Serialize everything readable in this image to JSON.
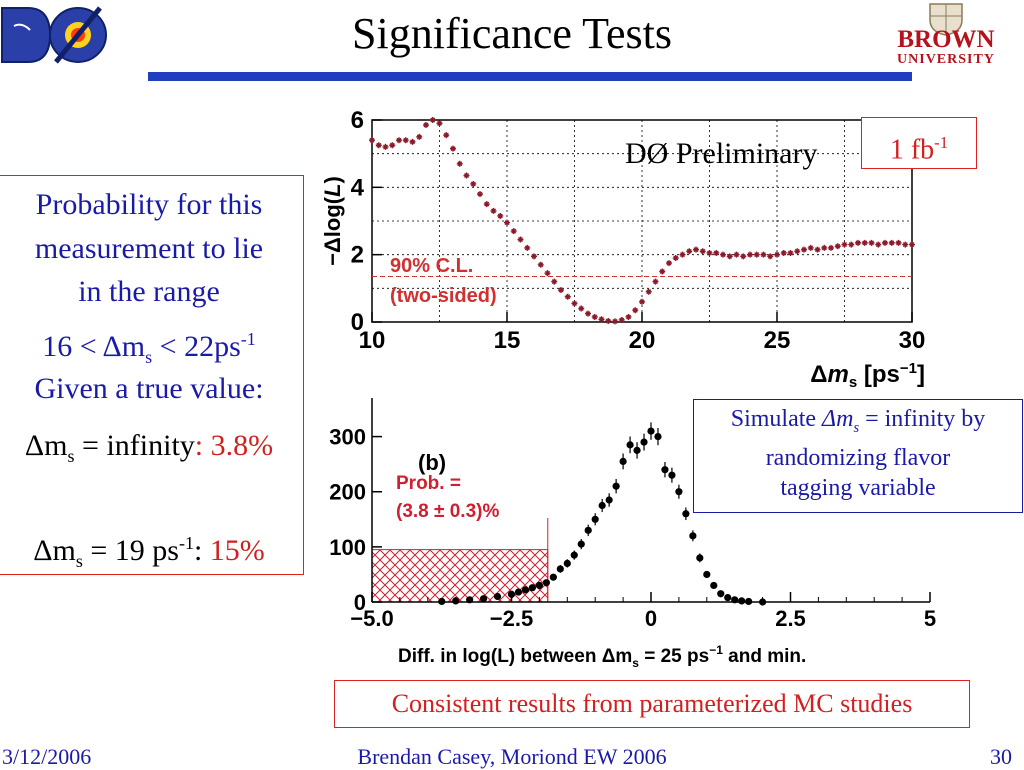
{
  "slide": {
    "title": "Significance Tests",
    "logo_right_line1": "BROWN",
    "logo_right_line2": "UNIVERSITY",
    "footer_date": "3/12/2006",
    "footer_author": "Brendan Casey,  Moriond EW 2006",
    "footer_page": "30"
  },
  "left_box": {
    "line1": "Probability for this",
    "line2": "measurement to lie",
    "line3": "in the range",
    "range_prefix": "16 < Δm",
    "range_sub": "s",
    "range_mid": " < 22ps",
    "range_sup": "-1",
    "given": "Given a true value:",
    "inf_prefix": "Δm",
    "inf_sub": "s",
    "inf_text": " = infinity",
    "inf_value": ": 3.8%",
    "nineteen_prefix": "Δm",
    "nineteen_sub": "s",
    "nineteen_text": " = 19 ps",
    "nineteen_sup": "-1",
    "nineteen_colon": ": ",
    "nineteen_value": "15%"
  },
  "top_plot": {
    "legend_text": "DØ Preliminary",
    "lumi_value": "1 fb",
    "lumi_sup": "-1",
    "cl_label_1": "90% C.L.",
    "cl_label_2": "(two-sided)",
    "ylabel_prefix": "−Δlog(",
    "ylabel_var": "L",
    "ylabel_suffix": ")",
    "xlabel_pre": "Δ",
    "xlabel_var": "m",
    "xlabel_sub": "s",
    "xlabel_unit": "  [ps",
    "xlabel_sup": "−1",
    "xlabel_end": "]"
  },
  "bottom_plot": {
    "panel_label": "(b)",
    "prob_line1": "Prob. =",
    "prob_line2": "(3.8 ± 0.3)%",
    "xlabel": "Diff. in log(L) between Δm",
    "xlabel_sub": "s",
    "xlabel_tail": " = 25 ps",
    "xlabel_sup": "−1",
    "xlabel_end": " and min."
  },
  "sim_box": {
    "line1_pre": "Simulate ",
    "line1_var": "Δm",
    "line1_sub": "s",
    "line1_post": " = infinity by",
    "line2": "randomizing flavor",
    "line3": "tagging variable"
  },
  "bottom_note": "Consistent results from parameterized MC studies",
  "colors": {
    "accent_blue": "#1a1aa8",
    "accent_red": "#d21f1f",
    "rule_blue": "#1f3fbf",
    "marker": "#8b1a2a"
  },
  "chart_data": [
    {
      "type": "scatter",
      "title": "",
      "xlabel": "Δm_s [ps^-1]",
      "ylabel": "−Δlog(L)",
      "xlim": [
        10,
        30
      ],
      "ylim": [
        0,
        6
      ],
      "x_ticks": [
        "10",
        "15",
        "20",
        "25",
        "30"
      ],
      "y_ticks": [
        "0",
        "2",
        "4",
        "6"
      ],
      "grid": true,
      "reference_line": {
        "y": 1.35,
        "label": "90% C.L. (two-sided)"
      },
      "series": [
        {
          "name": "",
          "x": [
            10.0,
            10.25,
            10.5,
            10.75,
            11.0,
            11.25,
            11.5,
            11.75,
            12.0,
            12.25,
            12.5,
            12.75,
            13.0,
            13.25,
            13.5,
            13.75,
            14.0,
            14.25,
            14.5,
            14.75,
            15.0,
            15.25,
            15.5,
            15.75,
            16.0,
            16.25,
            16.5,
            16.75,
            17.0,
            17.25,
            17.5,
            17.75,
            18.0,
            18.25,
            18.5,
            18.75,
            19.0,
            19.25,
            19.5,
            19.75,
            20.0,
            20.25,
            20.5,
            20.75,
            21.0,
            21.25,
            21.5,
            21.75,
            22.0,
            22.25,
            22.5,
            22.75,
            23.0,
            23.25,
            23.5,
            23.75,
            24.0,
            24.25,
            24.5,
            24.75,
            25.0,
            25.25,
            25.5,
            25.75,
            26.0,
            26.25,
            26.5,
            26.75,
            27.0,
            27.25,
            27.5,
            27.75,
            28.0,
            28.25,
            28.5,
            28.75,
            29.0,
            29.25,
            29.5,
            29.75,
            30.0
          ],
          "y": [
            5.4,
            5.25,
            5.2,
            5.25,
            5.4,
            5.4,
            5.35,
            5.5,
            5.85,
            6.0,
            5.9,
            5.55,
            5.15,
            4.7,
            4.35,
            4.1,
            3.8,
            3.5,
            3.3,
            3.15,
            2.95,
            2.7,
            2.45,
            2.2,
            1.95,
            1.7,
            1.45,
            1.2,
            0.95,
            0.75,
            0.55,
            0.4,
            0.25,
            0.15,
            0.08,
            0.03,
            0.02,
            0.06,
            0.15,
            0.35,
            0.6,
            0.9,
            1.2,
            1.5,
            1.75,
            1.9,
            2.0,
            2.1,
            2.15,
            2.1,
            2.05,
            2.05,
            2.0,
            1.95,
            2.0,
            1.95,
            2.0,
            2.0,
            2.0,
            1.95,
            2.0,
            2.05,
            2.05,
            2.1,
            2.15,
            2.2,
            2.15,
            2.2,
            2.2,
            2.25,
            2.3,
            2.3,
            2.35,
            2.35,
            2.35,
            2.3,
            2.35,
            2.35,
            2.35,
            2.3,
            2.3
          ]
        }
      ]
    },
    {
      "type": "scatter",
      "title": "",
      "xlabel": "Diff. in log(L) between Δm_s = 25 ps^-1 and min.",
      "ylabel": "",
      "xlim": [
        -5.0,
        5
      ],
      "ylim": [
        0,
        370
      ],
      "x_ticks": [
        "−5.0",
        "−2.5",
        "0",
        "2.5",
        "5"
      ],
      "y_ticks": [
        "0",
        "100",
        "200",
        "300"
      ],
      "grid": false,
      "shaded_region": {
        "x": [
          -5.0,
          -1.85
        ],
        "y": [
          0,
          95
        ],
        "label": "Prob. = (3.8 ± 0.3)%"
      },
      "series": [
        {
          "name": "",
          "x": [
            -3.75,
            -3.5,
            -3.25,
            -3.0,
            -2.75,
            -2.5,
            -2.375,
            -2.25,
            -2.125,
            -2.0,
            -1.875,
            -1.75,
            -1.625,
            -1.5,
            -1.375,
            -1.25,
            -1.125,
            -1.0,
            -0.875,
            -0.75,
            -0.625,
            -0.5,
            -0.375,
            -0.25,
            -0.125,
            0.0,
            0.125,
            0.25,
            0.375,
            0.5,
            0.625,
            0.75,
            0.875,
            1.0,
            1.125,
            1.25,
            1.375,
            1.5,
            1.625,
            1.75,
            2.0
          ],
          "y": [
            1,
            2,
            4,
            6,
            10,
            14,
            18,
            22,
            26,
            30,
            35,
            45,
            60,
            70,
            85,
            105,
            130,
            150,
            175,
            185,
            210,
            255,
            285,
            275,
            290,
            310,
            300,
            240,
            230,
            200,
            160,
            120,
            80,
            50,
            30,
            15,
            8,
            4,
            2,
            1,
            0
          ]
        }
      ]
    }
  ]
}
